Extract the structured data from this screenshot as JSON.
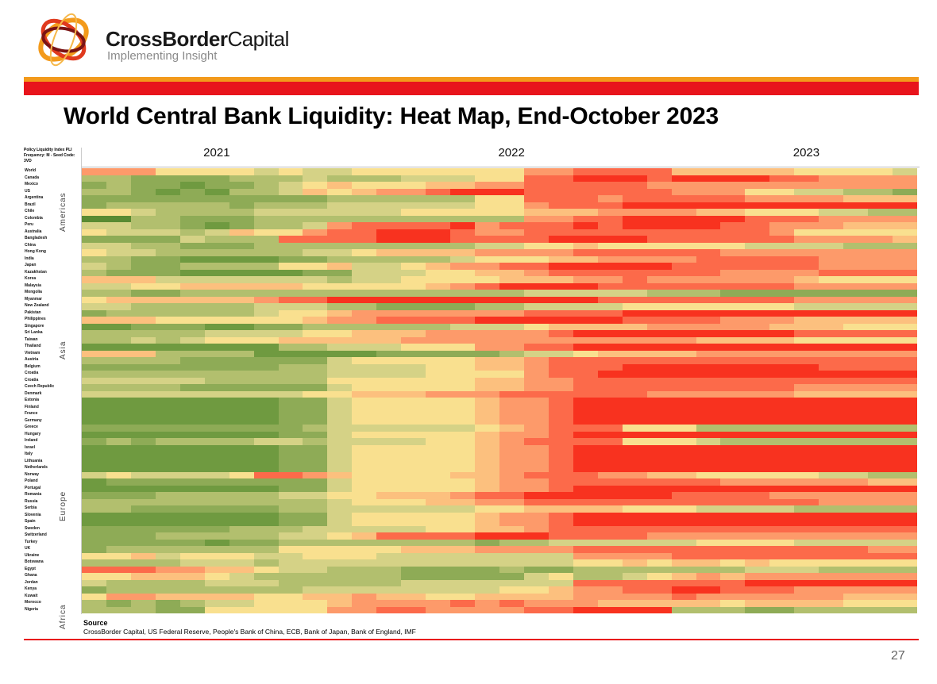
{
  "header": {
    "brand_bold": "CrossBorder",
    "brand_light": "Capital",
    "tagline": "Implementing Insight",
    "colors": {
      "orange_bar": "#f39a1b",
      "red_bar": "#e8141c"
    }
  },
  "slide": {
    "title": "World Central Bank Liquidity: Heat Map, End-October 2023",
    "page_number": "27"
  },
  "source": {
    "heading": "Source",
    "text": "CrossBorder Capital, US Federal Reserve, People's Bank of China, ECB, Bank of Japan, Bank of England, IMF"
  },
  "chart_data": {
    "type": "heatmap",
    "title": "World Central Bank Liquidity: Heat Map, End-October 2023",
    "meta_line1": "Policy Liquidity Index PLI",
    "meta_line2": "Frequency: M - Seed Code: 3VD",
    "x_year_labels": [
      {
        "label": "2021",
        "col": 5
      },
      {
        "label": "2022",
        "col": 17
      },
      {
        "label": "2023",
        "col": 29
      }
    ],
    "x_range": "Jan 2021 - Oct 2023 (monthly)",
    "n_cols": 34,
    "color_scale": {
      "low": "#5f8f37",
      "mid": "#fbe08f",
      "high": "#ff2417",
      "steps": [
        "#5a8a32",
        "#6f9a40",
        "#8eab56",
        "#b2bf6e",
        "#d5d286",
        "#f9e08f",
        "#fcc07e",
        "#fd9a6a",
        "#fc6a4a",
        "#f8321f"
      ],
      "meaning": "0 = green (easing / liquidity rising), 9 = red (tightening / liquidity falling)"
    },
    "regions": [
      {
        "label": "Americas",
        "row": 7
      },
      {
        "label": "Asia",
        "row": 26
      },
      {
        "label": "Europe",
        "row": 50
      },
      {
        "label": "Africa",
        "row": 66
      }
    ],
    "rows": [
      {
        "label": "World",
        "v": "7775555454455555557788886666655554"
      },
      {
        "label": "Canada",
        "v": "3322223334333444558899989999887777"
      },
      {
        "label": "Mexico",
        "v": "2322122345655566778888877777777777"
      },
      {
        "label": "US",
        "v": "3321213346567789998888887775544332"
      },
      {
        "label": "Argentina",
        "v": "2222222222333333558887888887777666"
      },
      {
        "label": "Brazil",
        "v": "2333332333444444557888999999999999"
      },
      {
        "label": "Chile",
        "v": "5543333444444555556667777665554433"
      },
      {
        "label": "Colombia",
        "v": "0033222333333333337788999998887777"
      },
      {
        "label": "Peru",
        "v": "4433212334788889788898999988777666"
      },
      {
        "label": "Australia",
        "v": "5444346557889998778888888888755555"
      },
      {
        "label": "Bangladesh",
        "v": "2222433388889998888999988888877776"
      },
      {
        "label": "China",
        "v": "4433222333333333445565555554444333"
      },
      {
        "label": "Hong Kong",
        "v": "5443333334456666777788888877777777"
      },
      {
        "label": "India",
        "v": "3322111122333334555667777888887777"
      },
      {
        "label": "Japan",
        "v": "4322333355644567788999998888887777"
      },
      {
        "label": "Kazakhstan",
        "v": "3222111112244455667888888877778888"
      },
      {
        "label": "Korea",
        "v": "6664444444344555566677877777765555"
      },
      {
        "label": "Malaysia",
        "v": "4455666665555567899998888888877777"
      },
      {
        "label": "Mongolia",
        "v": "3322333333333333334444433322222222"
      },
      {
        "label": "Myanmar",
        "v": "5666666788999999999998888888877777"
      },
      {
        "label": "New Zealand",
        "v": "4433333444332222334444555555544444"
      },
      {
        "label": "Pakistan",
        "v": "2333333455677777778888999999999999"
      },
      {
        "label": "Philippines",
        "v": "6665555556778888999999888877766666"
      },
      {
        "label": "Singapore",
        "v": "1122211223333334445666677777666555"
      },
      {
        "label": "Sri Lanka",
        "v": "3333344445566677777899999999988888"
      },
      {
        "label": "Taiwan",
        "v": "3343455566666777777777777666655555"
      },
      {
        "label": "Thailand",
        "v": "1111111133444555778899999999999999"
      },
      {
        "label": "Vietnam",
        "v": "6663333111112222234456666777777777"
      },
      {
        "label": "Austria",
        "v": "3333222222455555667888888888888888"
      },
      {
        "label": "Belgium",
        "v": "2222222233444455667888999999998888"
      },
      {
        "label": "Croatia",
        "v": "3333333333444455557889999999999999"
      },
      {
        "label": "Croatia",
        "v": "4444433333555555667788888888888888"
      },
      {
        "label": "Czech Republic",
        "v": "3333222222455555667788888888877777"
      },
      {
        "label": "Denmark",
        "v": "4444444445566677788888877777766666"
      },
      {
        "label": "Estonia",
        "v": "1111111122455555677899999999999999"
      },
      {
        "label": "Finland",
        "v": "1111111122455555677899999999999999"
      },
      {
        "label": "France",
        "v": "1111111122455555677899999999999999"
      },
      {
        "label": "Germany",
        "v": "1111111122455555677899999999999999"
      },
      {
        "label": "Greece",
        "v": "2222222223444444567888555333333333"
      },
      {
        "label": "Hungary",
        "v": "1111111122455555677899999999999999"
      },
      {
        "label": "Ireland",
        "v": "2323333443444455678888555433333333"
      },
      {
        "label": "Israel",
        "v": "1111111122455555677899999999999999"
      },
      {
        "label": "Italy",
        "v": "1111111122455555677899999999999999"
      },
      {
        "label": "Lithuania",
        "v": "1111111122455555677899999999999999"
      },
      {
        "label": "Netherlands",
        "v": "1111111122455555677899999999999999"
      },
      {
        "label": "Norway",
        "v": "4544445887655556678887766555554433"
      },
      {
        "label": "Poland",
        "v": "1222222222455555677888888877777766"
      },
      {
        "label": "Portugal",
        "v": "1111111122455555677899999999999999"
      },
      {
        "label": "Romania",
        "v": "2223333344556667889999998888777777"
      },
      {
        "label": "Russia",
        "v": "3333333333455566778888888888887777"
      },
      {
        "label": "Serbia",
        "v": "3322222233444444556666555444433333"
      },
      {
        "label": "Slovenia",
        "v": "1111111122455555677899999999999999"
      },
      {
        "label": "Spain",
        "v": "1111111122455555677899999999999999"
      },
      {
        "label": "Sweden",
        "v": "2222223334444455667888888888888888"
      },
      {
        "label": "Switzerland",
        "v": "2223333344568888999888877777777777"
      },
      {
        "label": "Turkey",
        "v": "2222212233333333233444444555544444"
      },
      {
        "label": "UK",
        "v": "2333333355555666777788888888888877"
      },
      {
        "label": "Ukraine",
        "v": "5564555445554444444477778888888888"
      },
      {
        "label": "Botswana",
        "v": "3333444344444444444455656656555555"
      },
      {
        "label": "Egypt",
        "v": "8887766544333222232233333334443333"
      },
      {
        "label": "Ghana",
        "v": "5566654333333222224533456767777777"
      },
      {
        "label": "Jordan",
        "v": "4333344433333444444488888889999999"
      },
      {
        "label": "Kenya",
        "v": "2333333334444444455677889988877777"
      },
      {
        "label": "Kuwait",
        "v": "5776666556676655666677778777777666"
      },
      {
        "label": "Morocco",
        "v": "3232344555677778787776666656666555"
      },
      {
        "label": "Nigeria",
        "v": "3332255555778877778899993332233333"
      }
    ]
  }
}
